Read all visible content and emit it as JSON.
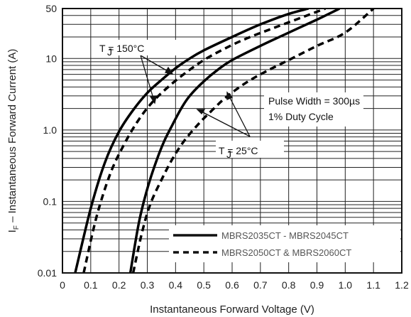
{
  "chart_data": {
    "type": "line",
    "xlabel": "Instantaneous Forward Voltage (V)",
    "ylabel_main": "I",
    "ylabel_sub": "F",
    "ylabel_rest": " – Instantaneous Forward Current (A)",
    "xlim": [
      0,
      1.2
    ],
    "ylim": [
      0.01,
      50
    ],
    "y_scale": "log",
    "grid": true,
    "x_ticks": [
      "0",
      "0.1",
      "0.2",
      "0.3",
      "0.4",
      "0.5",
      "0.6",
      "0.7",
      "0.8",
      "0.9",
      "1.0",
      "1.1",
      "1.2"
    ],
    "y_ticks": [
      "0.01",
      "0.1",
      "1.0",
      "10",
      "50"
    ],
    "legend_placement": "bottom-right",
    "annotations": {
      "tj150": "T  = 150°C",
      "tj25": "T  = 25°C",
      "tj_sub": "J",
      "pulse": "Pulse Width = 300µs",
      "duty": "1% Duty Cycle"
    },
    "series": [
      {
        "name": "MBRS2035CT - MBRS2045CT",
        "style": "solid",
        "condition": "150°C",
        "x": [
          0.045,
          0.1,
          0.15,
          0.2,
          0.25,
          0.3,
          0.35,
          0.4,
          0.45,
          0.5,
          0.6,
          0.7,
          0.8,
          0.87
        ],
        "y": [
          0.01,
          0.08,
          0.35,
          0.95,
          1.9,
          3.3,
          5.0,
          7.3,
          10,
          13,
          20,
          30,
          42,
          50
        ]
      },
      {
        "name": "MBRS2035CT - MBRS2045CT",
        "style": "solid",
        "condition": "25°C",
        "x": [
          0.24,
          0.27,
          0.3,
          0.33,
          0.36,
          0.39,
          0.42,
          0.45,
          0.5,
          0.55,
          0.6,
          0.7,
          0.8,
          0.9,
          0.98
        ],
        "y": [
          0.01,
          0.05,
          0.15,
          0.35,
          0.7,
          1.2,
          2.0,
          3.0,
          4.8,
          7.0,
          9.5,
          15,
          23,
          35,
          50
        ]
      },
      {
        "name": "MBRS2050CT & MBRS2060CT",
        "style": "dashed",
        "condition": "150°C",
        "x": [
          0.075,
          0.12,
          0.17,
          0.22,
          0.27,
          0.32,
          0.38,
          0.44,
          0.5,
          0.57,
          0.65,
          0.75,
          0.85,
          0.93
        ],
        "y": [
          0.01,
          0.06,
          0.25,
          0.65,
          1.4,
          2.5,
          4.2,
          6.5,
          9.5,
          13.5,
          19,
          27,
          38,
          50
        ]
      },
      {
        "name": "MBRS2050CT & MBRS2060CT",
        "style": "dashed",
        "condition": "25°C",
        "x": [
          0.25,
          0.28,
          0.31,
          0.35,
          0.39,
          0.43,
          0.48,
          0.53,
          0.58,
          0.65,
          0.72,
          0.8,
          0.9,
          1.0,
          1.1
        ],
        "y": [
          0.01,
          0.035,
          0.09,
          0.2,
          0.4,
          0.7,
          1.2,
          1.9,
          2.9,
          4.6,
          6.6,
          9.5,
          15,
          23,
          50
        ]
      }
    ]
  }
}
